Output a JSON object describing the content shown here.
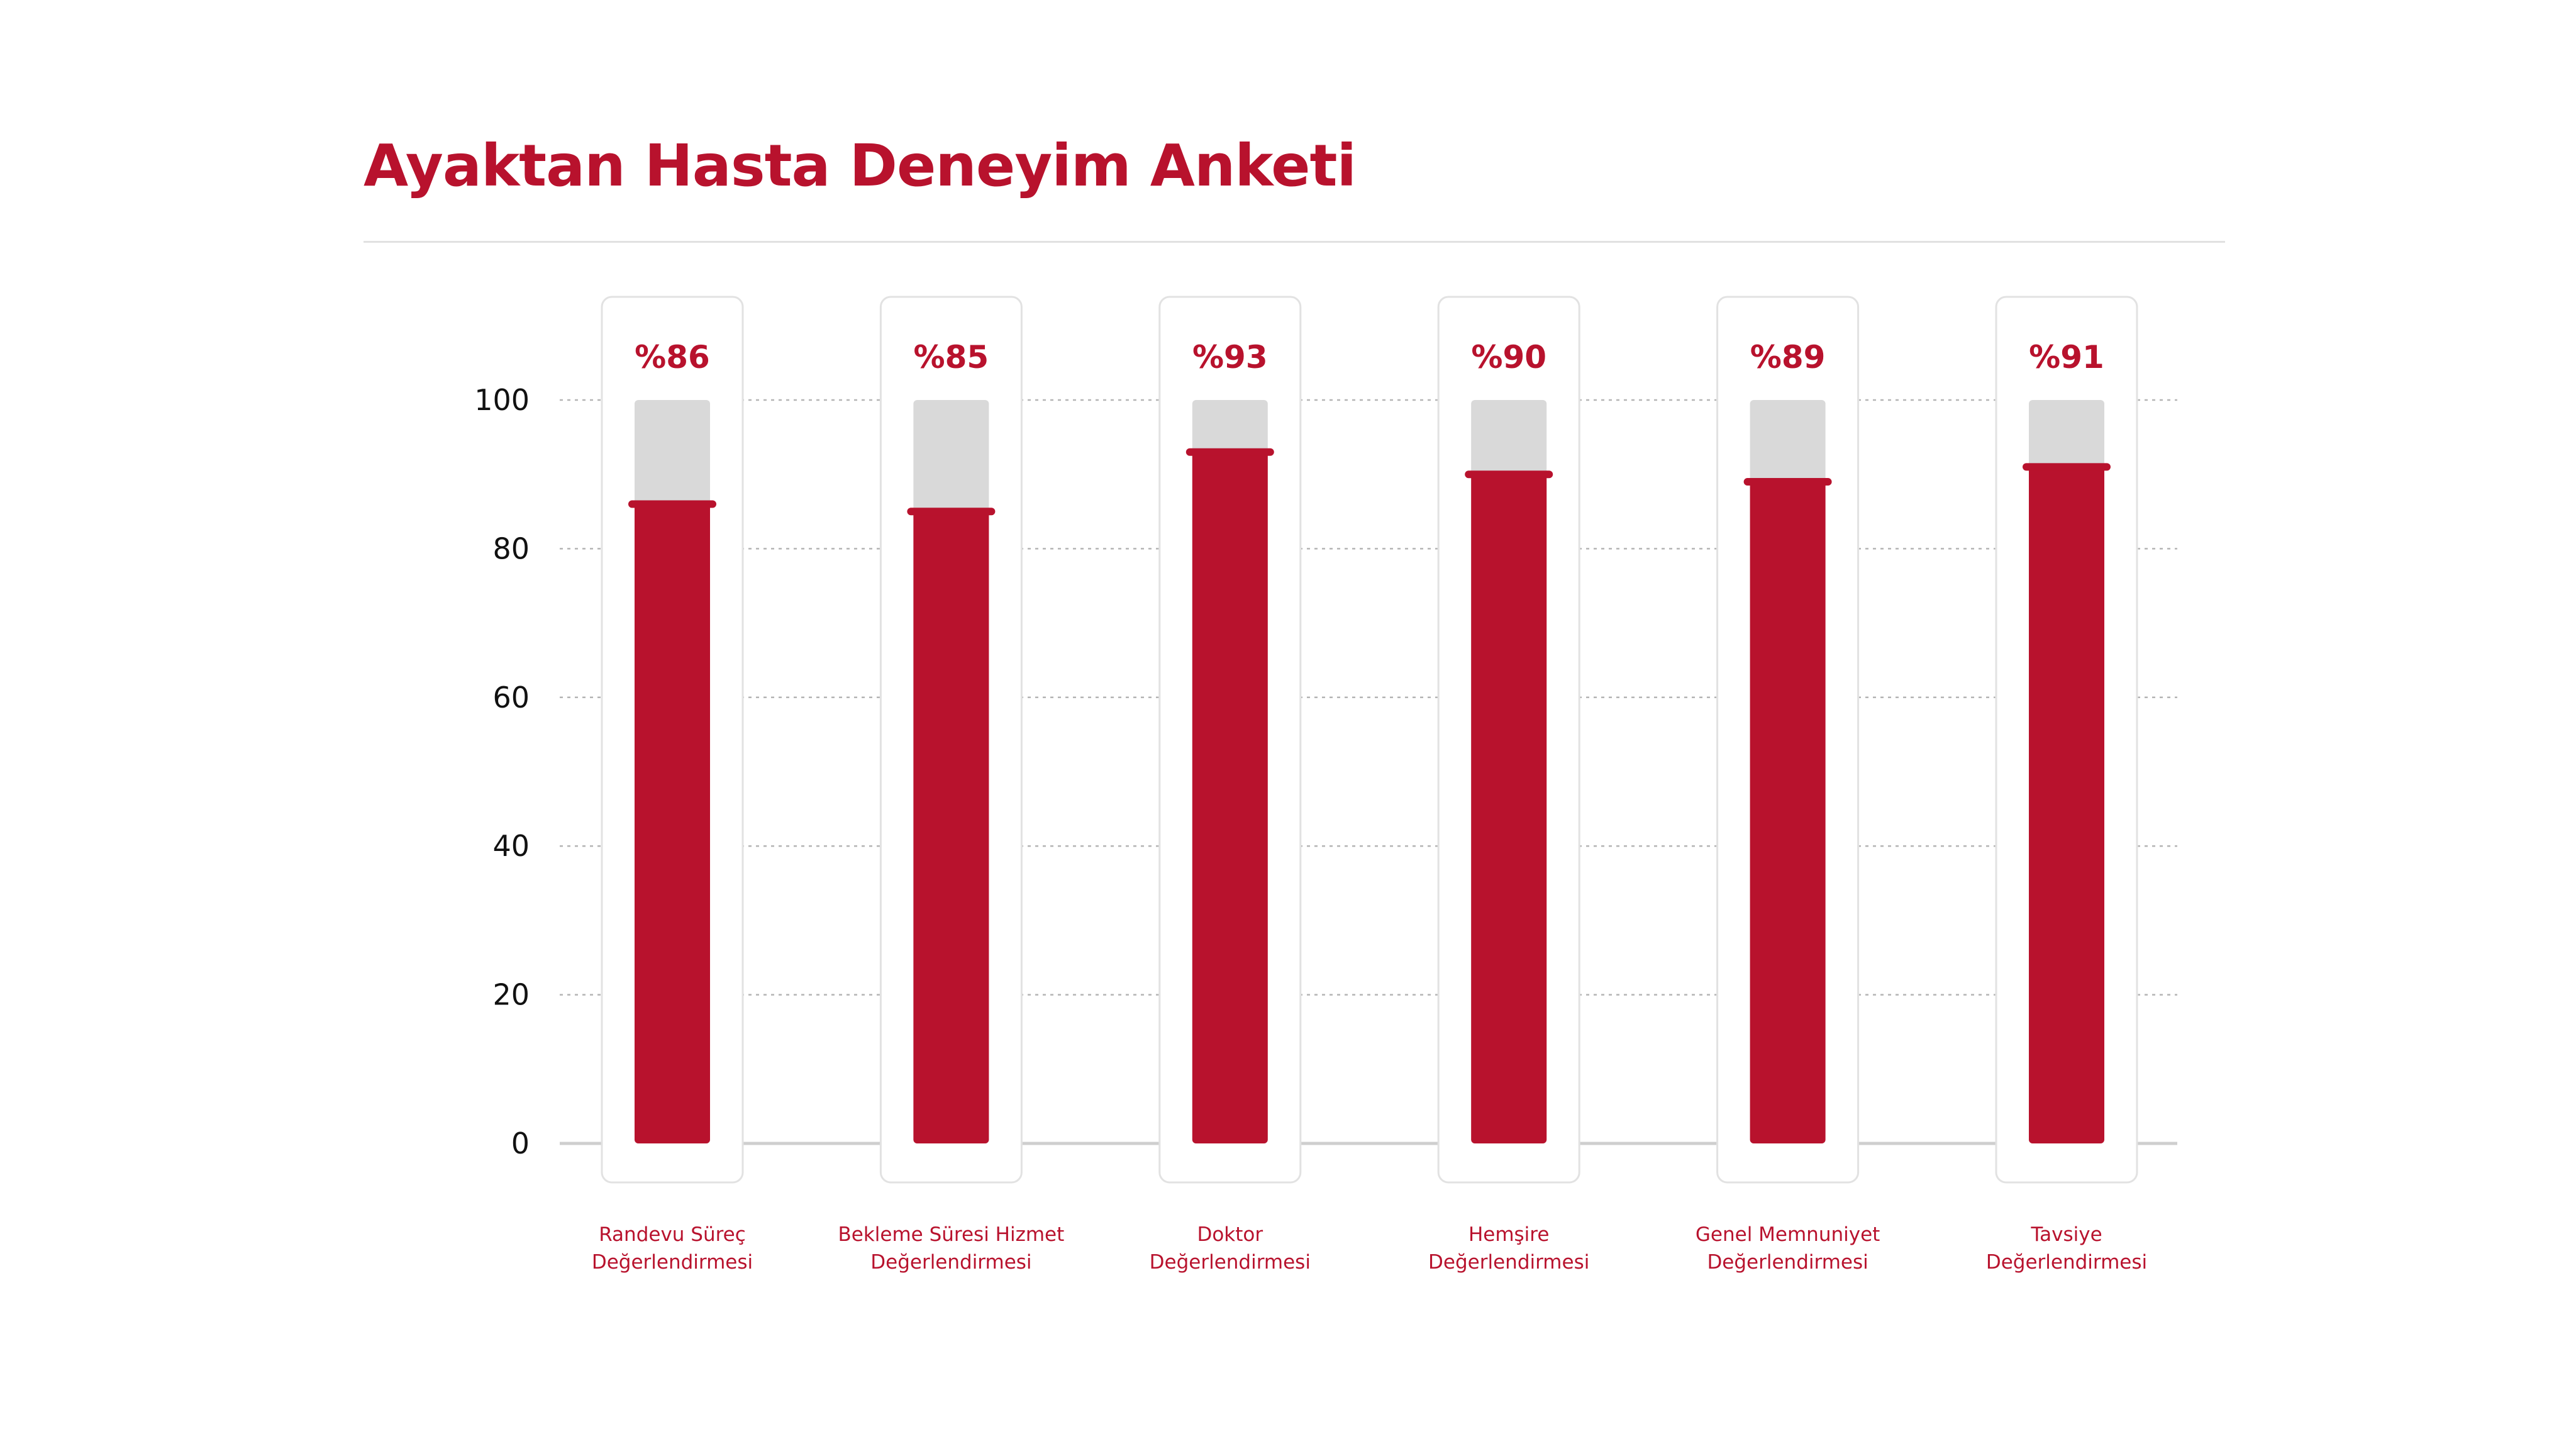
{
  "page": {
    "title": "Ayaktan Hasta Deneyim Anketi"
  },
  "colors": {
    "accent": "#b8122d",
    "track": "#d9d9d9",
    "card_border": "#e2e2e2",
    "axis_text": "#111111",
    "grid": "#b5b5b5"
  },
  "chart_data": {
    "type": "bar",
    "title": "",
    "xlabel": "",
    "ylabel": "",
    "ylim": [
      0,
      100
    ],
    "yticks": [
      0,
      20,
      40,
      60,
      80,
      100
    ],
    "grid": true,
    "categories": [
      [
        "Randevu Süreç",
        "Değerlendirmesi"
      ],
      [
        "Bekleme Süresi Hizmet",
        "Değerlendirmesi"
      ],
      [
        "Doktor",
        "Değerlendirmesi"
      ],
      [
        "Hemşire",
        "Değerlendirmesi"
      ],
      [
        "Genel Memnuniyet",
        "Değerlendirmesi"
      ],
      [
        "Tavsiye",
        "Değerlendirmesi"
      ]
    ],
    "values": [
      86,
      85,
      93,
      90,
      89,
      91
    ],
    "value_labels": [
      "%86",
      "%85",
      "%93",
      "%90",
      "%89",
      "%91"
    ]
  }
}
